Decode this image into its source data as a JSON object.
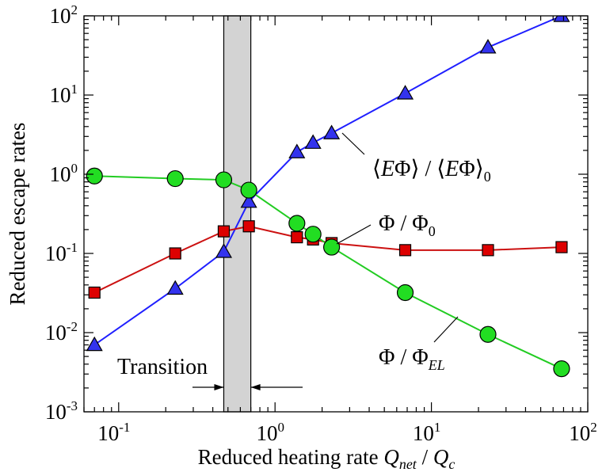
{
  "chart_data": {
    "type": "line",
    "xscale": "log",
    "yscale": "log",
    "xlim": [
      0.06,
      100
    ],
    "ylim": [
      0.001,
      100
    ],
    "grid": false,
    "xlabel": {
      "text": "Reduced heating rate ",
      "var1": "Q",
      "sub1": "net",
      "sep": " / ",
      "var2": "Q",
      "sub2": "c"
    },
    "ylabel": "Reduced escape rates",
    "xticks": [
      {
        "value": 0.1,
        "base": "10",
        "exp": "-1"
      },
      {
        "value": 1,
        "base": "10",
        "exp": "0"
      },
      {
        "value": 10,
        "base": "10",
        "exp": "1"
      },
      {
        "value": 100,
        "base": "10",
        "exp": "2"
      }
    ],
    "yticks": [
      {
        "value": 0.001,
        "base": "10",
        "exp": "-3"
      },
      {
        "value": 0.01,
        "base": "10",
        "exp": "-2"
      },
      {
        "value": 0.1,
        "base": "10",
        "exp": "-1"
      },
      {
        "value": 1,
        "base": "10",
        "exp": "0"
      },
      {
        "value": 10,
        "base": "10",
        "exp": "1"
      },
      {
        "value": 100,
        "base": "10",
        "exp": "2"
      }
    ],
    "transition": {
      "label": "Transition",
      "x_start": 0.47,
      "x_end": 0.7
    },
    "series": [
      {
        "key": "energy",
        "marker": "triangle",
        "color": "#1f1fff",
        "marker_color": "#3333ee",
        "label": {
          "open": "⟨",
          "var": "E",
          "phi": "Φ",
          "close": "⟩",
          "sep": " / ",
          "sub": "0"
        },
        "x": [
          0.07,
          0.23,
          0.47,
          0.68,
          1.38,
          1.75,
          2.3,
          6.8,
          23,
          68
        ],
        "y": [
          0.007,
          0.036,
          0.105,
          0.45,
          1.9,
          2.5,
          3.3,
          10.5,
          40,
          100
        ]
      },
      {
        "key": "flux",
        "marker": "square",
        "color": "#cc1111",
        "marker_color": "#dd0000",
        "label": {
          "phi": "Φ",
          "sep": " / ",
          "sub": "0"
        },
        "x": [
          0.07,
          0.23,
          0.47,
          0.68,
          1.38,
          1.75,
          2.3,
          6.8,
          23,
          68
        ],
        "y": [
          0.032,
          0.1,
          0.19,
          0.22,
          0.16,
          0.15,
          0.135,
          0.11,
          0.11,
          0.12
        ]
      },
      {
        "key": "flux_el",
        "marker": "circle",
        "color": "#22cc22",
        "marker_color": "#22dd22",
        "label": {
          "phi": "Φ",
          "sep": " / ",
          "sub": "EL"
        },
        "x": [
          0.07,
          0.23,
          0.47,
          0.68,
          1.38,
          1.75,
          2.3,
          6.8,
          23,
          68
        ],
        "y": [
          0.95,
          0.88,
          0.85,
          0.63,
          0.24,
          0.175,
          0.12,
          0.032,
          0.0095,
          0.0035
        ]
      }
    ]
  }
}
